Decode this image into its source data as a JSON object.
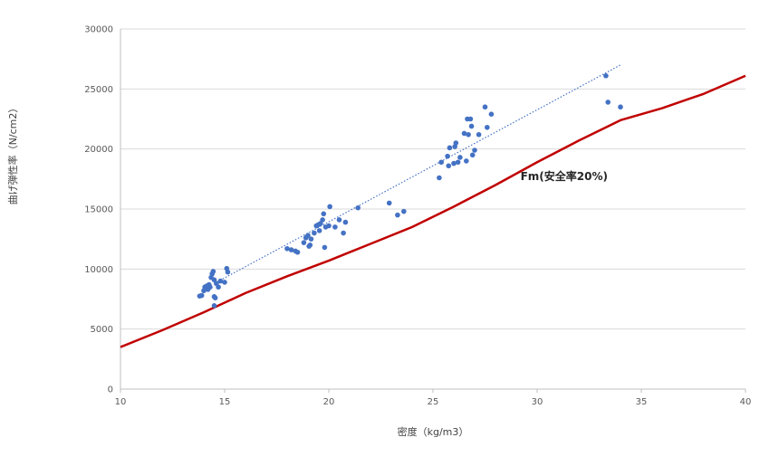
{
  "chart_data": {
    "type": "scatter",
    "title": "",
    "xlabel": "密度（kg/m3）",
    "ylabel": "曲げ弾性率（N/cm2）",
    "xlim": [
      10,
      40
    ],
    "ylim": [
      0,
      30000
    ],
    "x_ticks": [
      10,
      15,
      20,
      25,
      30,
      35,
      40
    ],
    "y_ticks": [
      0,
      5000,
      10000,
      15000,
      20000,
      25000,
      30000
    ],
    "grid": "horizontal",
    "colors": {
      "points": "#4472C4",
      "fm_line": "#C00000",
      "trend": "#4472C4",
      "grid": "#D9D9D9"
    },
    "series": [
      {
        "type": "scatter",
        "points": [
          [
            13.8,
            7750
          ],
          [
            13.9,
            7800
          ],
          [
            14.0,
            8200
          ],
          [
            14.05,
            8500
          ],
          [
            14.1,
            8400
          ],
          [
            14.15,
            8600
          ],
          [
            14.2,
            8300
          ],
          [
            14.25,
            8700
          ],
          [
            14.3,
            8500
          ],
          [
            14.35,
            9300
          ],
          [
            14.4,
            9600
          ],
          [
            14.45,
            9800
          ],
          [
            14.5,
            9100
          ],
          [
            14.5,
            7700
          ],
          [
            14.55,
            7600
          ],
          [
            14.5,
            6950
          ],
          [
            14.6,
            8800
          ],
          [
            14.7,
            8500
          ],
          [
            14.8,
            9000
          ],
          [
            15.0,
            8900
          ],
          [
            15.1,
            10050
          ],
          [
            15.15,
            9750
          ],
          [
            18.0,
            11700
          ],
          [
            18.2,
            11600
          ],
          [
            18.4,
            11500
          ],
          [
            18.5,
            11400
          ],
          [
            18.8,
            12200
          ],
          [
            18.9,
            12600
          ],
          [
            19.0,
            12800
          ],
          [
            19.05,
            11900
          ],
          [
            19.1,
            12000
          ],
          [
            19.15,
            12500
          ],
          [
            19.3,
            13000
          ],
          [
            19.4,
            13600
          ],
          [
            19.5,
            13700
          ],
          [
            19.55,
            13200
          ],
          [
            19.6,
            13800
          ],
          [
            19.7,
            14100
          ],
          [
            19.75,
            14600
          ],
          [
            19.8,
            11800
          ],
          [
            19.85,
            13500
          ],
          [
            20.0,
            13600
          ],
          [
            20.05,
            15200
          ],
          [
            20.3,
            13500
          ],
          [
            20.5,
            14100
          ],
          [
            20.7,
            13000
          ],
          [
            20.8,
            13900
          ],
          [
            21.4,
            15100
          ],
          [
            22.9,
            15500
          ],
          [
            23.3,
            14500
          ],
          [
            23.6,
            14800
          ],
          [
            25.3,
            17600
          ],
          [
            25.4,
            18900
          ],
          [
            25.7,
            19400
          ],
          [
            25.75,
            18600
          ],
          [
            25.8,
            20100
          ],
          [
            26.0,
            18800
          ],
          [
            26.05,
            20200
          ],
          [
            26.1,
            20500
          ],
          [
            26.2,
            18900
          ],
          [
            26.3,
            19300
          ],
          [
            26.5,
            21300
          ],
          [
            26.6,
            19000
          ],
          [
            26.65,
            22500
          ],
          [
            26.8,
            22500
          ],
          [
            26.85,
            21900
          ],
          [
            26.7,
            21200
          ],
          [
            26.9,
            19500
          ],
          [
            27.0,
            19900
          ],
          [
            27.2,
            21200
          ],
          [
            27.5,
            23500
          ],
          [
            27.6,
            21800
          ],
          [
            27.8,
            22900
          ],
          [
            33.3,
            26100
          ],
          [
            33.4,
            23900
          ],
          [
            34.0,
            23500
          ]
        ]
      },
      {
        "type": "trendline",
        "style": "dotted",
        "points": [
          [
            14.5,
            8800
          ],
          [
            34.0,
            27000
          ]
        ]
      },
      {
        "name": "Fm(安全率20%)",
        "type": "line",
        "points": [
          [
            10,
            3500
          ],
          [
            12,
            4900
          ],
          [
            14,
            6400
          ],
          [
            16,
            8000
          ],
          [
            18,
            9400
          ],
          [
            20,
            10700
          ],
          [
            22,
            12100
          ],
          [
            24,
            13500
          ],
          [
            26,
            15200
          ],
          [
            28,
            17000
          ],
          [
            30,
            18900
          ],
          [
            32,
            20700
          ],
          [
            34,
            22400
          ],
          [
            36,
            23400
          ],
          [
            38,
            24600
          ],
          [
            40,
            26100
          ]
        ]
      }
    ],
    "annotations": [
      {
        "text": "Fm(安全率20%)",
        "x": 29.2,
        "y": 17400
      }
    ]
  }
}
